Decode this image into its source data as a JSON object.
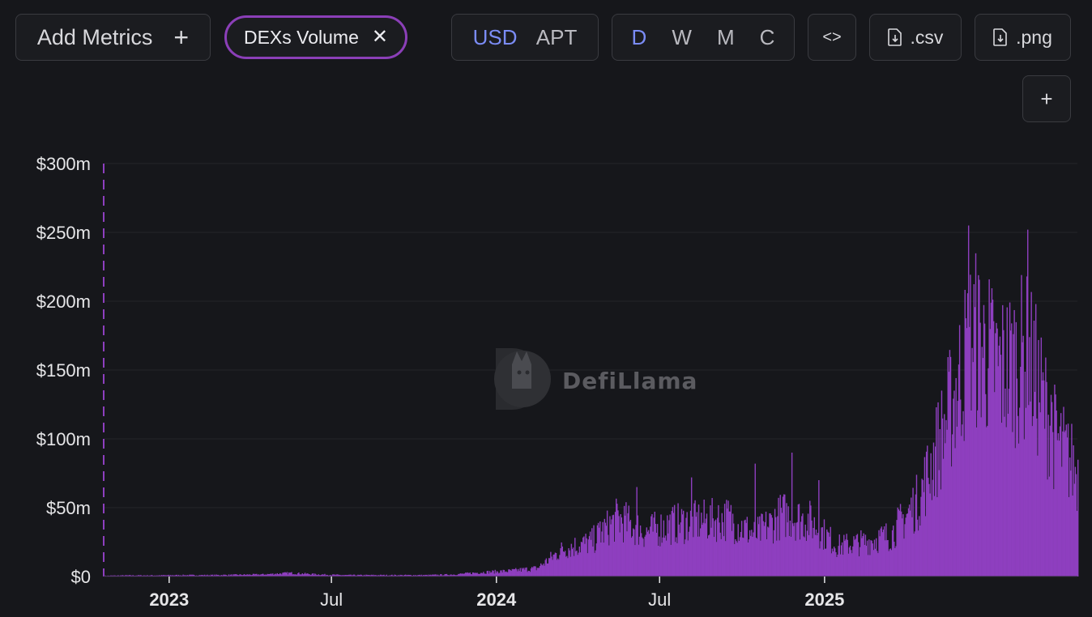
{
  "toolbar": {
    "add_metrics_label": "Add Metrics",
    "active_metric": "DEXs Volume",
    "currency_options": [
      "USD",
      "APT"
    ],
    "currency_selected": "USD",
    "period_options": [
      "D",
      "W",
      "M",
      "C"
    ],
    "period_selected": "D",
    "csv_label": ".csv",
    "png_label": ".png"
  },
  "watermark": "DefiLlama",
  "colors": {
    "series": "#8e3fbf",
    "accent": "#7b8cf5",
    "chip_border": "#8b3fb8",
    "background": "#16171b"
  },
  "chart_data": {
    "type": "bar",
    "series": [
      {
        "name": "DEXs Volume",
        "color": "#8e3fbf"
      }
    ],
    "x_range": [
      "2022-10-20",
      "2025-10-10"
    ],
    "ylim": [
      0,
      300
    ],
    "y_unit": "$m",
    "y_ticks": [
      "$0",
      "$50m",
      "$100m",
      "$150m",
      "$200m",
      "$250m",
      "$300m"
    ],
    "x_ticks": [
      {
        "label": "2023",
        "date": "2023-01-01",
        "major": true
      },
      {
        "label": "Jul",
        "date": "2023-07-01",
        "major": false
      },
      {
        "label": "2024",
        "date": "2024-01-01",
        "major": true
      },
      {
        "label": "Jul",
        "date": "2024-07-01",
        "major": false
      },
      {
        "label": "2025",
        "date": "2025-01-01",
        "major": true
      }
    ],
    "grid": true,
    "legend": "none",
    "monthly_typical_daily_volume_m": [
      {
        "month": "2022-10",
        "v": 0.5
      },
      {
        "month": "2022-11",
        "v": 0.8
      },
      {
        "month": "2022-12",
        "v": 0.8
      },
      {
        "month": "2023-01",
        "v": 1
      },
      {
        "month": "2023-02",
        "v": 1
      },
      {
        "month": "2023-03",
        "v": 1.2
      },
      {
        "month": "2023-04",
        "v": 1.5
      },
      {
        "month": "2023-05",
        "v": 2.5
      },
      {
        "month": "2023-06",
        "v": 1.5
      },
      {
        "month": "2023-07",
        "v": 1
      },
      {
        "month": "2023-08",
        "v": 1
      },
      {
        "month": "2023-09",
        "v": 1
      },
      {
        "month": "2023-10",
        "v": 1
      },
      {
        "month": "2023-11",
        "v": 1.5
      },
      {
        "month": "2023-12",
        "v": 3
      },
      {
        "month": "2024-01",
        "v": 4
      },
      {
        "month": "2024-02",
        "v": 6
      },
      {
        "month": "2024-03",
        "v": 20
      },
      {
        "month": "2024-04",
        "v": 25
      },
      {
        "month": "2024-05",
        "v": 42
      },
      {
        "month": "2024-06",
        "v": 32
      },
      {
        "month": "2024-07",
        "v": 38
      },
      {
        "month": "2024-08",
        "v": 40
      },
      {
        "month": "2024-09",
        "v": 42
      },
      {
        "month": "2024-10",
        "v": 30
      },
      {
        "month": "2024-11",
        "v": 45
      },
      {
        "month": "2024-12",
        "v": 40
      },
      {
        "month": "2025-01",
        "v": 22
      },
      {
        "month": "2025-02",
        "v": 25
      },
      {
        "month": "2025-03",
        "v": 30
      },
      {
        "month": "2025-04",
        "v": 55
      },
      {
        "month": "2025-05",
        "v": 110
      },
      {
        "month": "2025-06",
        "v": 175
      },
      {
        "month": "2025-07",
        "v": 150
      },
      {
        "month": "2025-08",
        "v": 160
      },
      {
        "month": "2025-09",
        "v": 100
      },
      {
        "month": "2025-10",
        "v": 70
      }
    ],
    "peaks": [
      {
        "date": "2024-04-25",
        "value_m": 40
      },
      {
        "date": "2024-06-05",
        "value_m": 65
      },
      {
        "date": "2024-08-05",
        "value_m": 72
      },
      {
        "date": "2024-10-15",
        "value_m": 82
      },
      {
        "date": "2024-11-25",
        "value_m": 90
      },
      {
        "date": "2024-12-25",
        "value_m": 70
      },
      {
        "date": "2025-06-10",
        "value_m": 255
      },
      {
        "date": "2025-08-15",
        "value_m": 252
      },
      {
        "date": "2025-09-10",
        "value_m": 132
      }
    ]
  }
}
